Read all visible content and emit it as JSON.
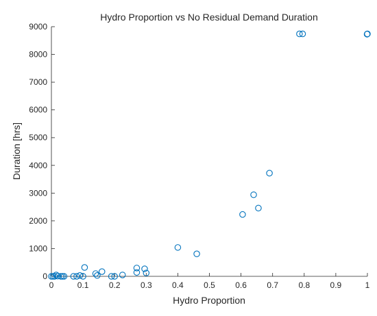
{
  "chart_data": {
    "type": "scatter",
    "title": "Hydro Proportion vs No Residual Demand Duration",
    "xlabel": "Hydro Proportion",
    "ylabel": "Duration [hrs]",
    "xlim": [
      0,
      1
    ],
    "ylim": [
      0,
      9000
    ],
    "xticks": [
      0,
      0.1,
      0.2,
      0.3,
      0.4,
      0.5,
      0.6,
      0.7,
      0.8,
      0.9,
      1
    ],
    "xtick_labels": [
      "0",
      "0.1",
      "0.2",
      "0.3",
      "0.4",
      "0.5",
      "0.6",
      "0.7",
      "0.8",
      "0.9",
      "1"
    ],
    "yticks": [
      0,
      1000,
      2000,
      3000,
      4000,
      5000,
      6000,
      7000,
      8000,
      9000
    ],
    "ytick_labels": [
      "0",
      "1000",
      "2000",
      "3000",
      "4000",
      "5000",
      "6000",
      "7000",
      "8000",
      "9000"
    ],
    "grid": false,
    "marker_color": "#0072BD",
    "series": [
      {
        "points": [
          {
            "x": 0.0,
            "y": 0
          },
          {
            "x": 0.005,
            "y": 0
          },
          {
            "x": 0.01,
            "y": 0
          },
          {
            "x": 0.015,
            "y": 50
          },
          {
            "x": 0.02,
            "y": 10
          },
          {
            "x": 0.03,
            "y": 0
          },
          {
            "x": 0.035,
            "y": 0
          },
          {
            "x": 0.04,
            "y": 0
          },
          {
            "x": 0.07,
            "y": 0
          },
          {
            "x": 0.08,
            "y": 0
          },
          {
            "x": 0.09,
            "y": 30
          },
          {
            "x": 0.1,
            "y": 0
          },
          {
            "x": 0.105,
            "y": 320
          },
          {
            "x": 0.14,
            "y": 100
          },
          {
            "x": 0.145,
            "y": 30
          },
          {
            "x": 0.16,
            "y": 170
          },
          {
            "x": 0.19,
            "y": 0
          },
          {
            "x": 0.2,
            "y": 0
          },
          {
            "x": 0.225,
            "y": 50
          },
          {
            "x": 0.27,
            "y": 300
          },
          {
            "x": 0.27,
            "y": 140
          },
          {
            "x": 0.295,
            "y": 270
          },
          {
            "x": 0.3,
            "y": 120
          },
          {
            "x": 0.4,
            "y": 1040
          },
          {
            "x": 0.46,
            "y": 810
          },
          {
            "x": 0.605,
            "y": 2230
          },
          {
            "x": 0.64,
            "y": 2940
          },
          {
            "x": 0.655,
            "y": 2460
          },
          {
            "x": 0.69,
            "y": 3720
          },
          {
            "x": 0.785,
            "y": 8740
          },
          {
            "x": 0.795,
            "y": 8740
          },
          {
            "x": 1.0,
            "y": 8740
          },
          {
            "x": 0.999,
            "y": 8730
          }
        ]
      }
    ]
  }
}
